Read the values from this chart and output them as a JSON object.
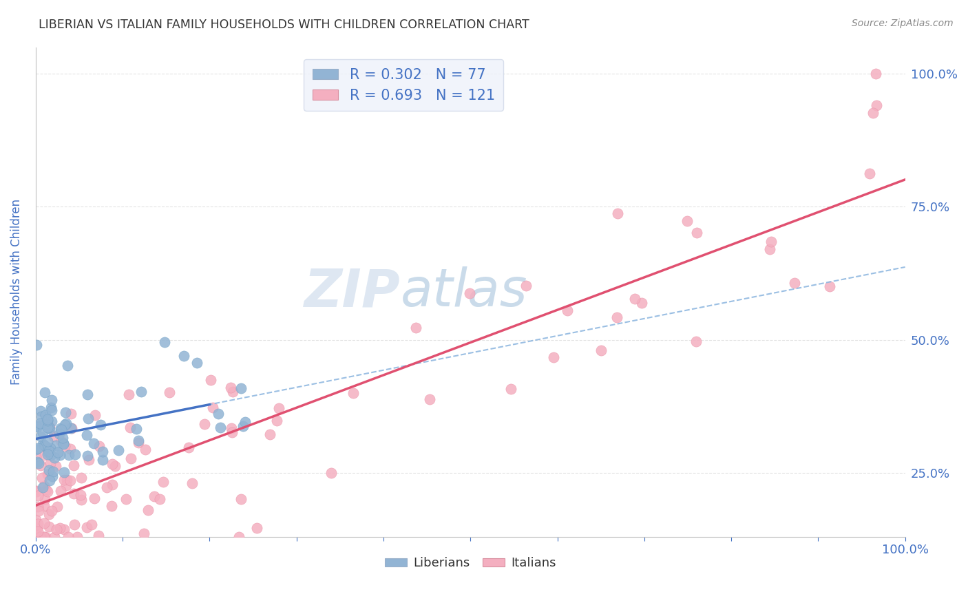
{
  "title": "LIBERIAN VS ITALIAN FAMILY HOUSEHOLDS WITH CHILDREN CORRELATION CHART",
  "source": "Source: ZipAtlas.com",
  "ylabel": "Family Households with Children",
  "xlim": [
    0.0,
    1.0
  ],
  "ylim": [
    0.13,
    1.05
  ],
  "liberian_color": "#92b4d4",
  "liberian_edge": "#6a9ec4",
  "italian_color": "#f4afc0",
  "italian_edge": "#e88aa0",
  "liberian_line_color": "#4472c4",
  "italian_line_color": "#e05070",
  "liberian_trend_color": "#90b8e0",
  "trend_dash_color": "#aaaaaa",
  "watermark_zip_color": "#c5d5e8",
  "watermark_atlas_color": "#b8c8e0",
  "legend_box_color": "#eef2fa",
  "R_liberian": 0.302,
  "N_liberian": 77,
  "R_italian": 0.693,
  "N_italian": 121,
  "background_color": "#ffffff",
  "grid_color": "#d8d8d8",
  "title_color": "#333333",
  "tick_label_color": "#4472c4",
  "marker_size": 120
}
